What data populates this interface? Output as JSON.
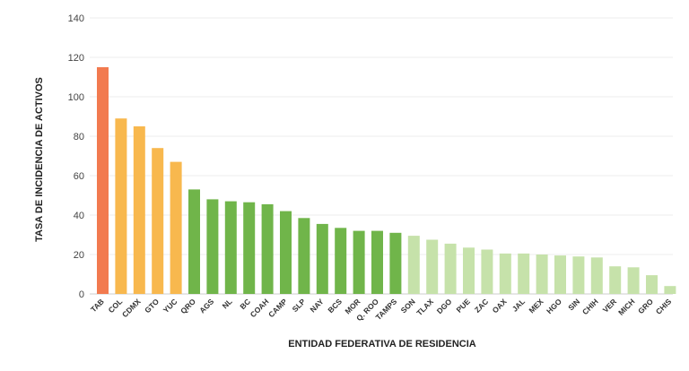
{
  "chart_data": {
    "type": "bar",
    "title": "",
    "xlabel": "ENTIDAD FEDERATIVA DE RESIDENCIA",
    "ylabel": "TASA DE INCIDENCIA DE ACTIVOS",
    "ylim": [
      0,
      140
    ],
    "yticks": [
      0,
      20,
      40,
      60,
      80,
      100,
      120,
      140
    ],
    "grid": true,
    "categories": [
      "TAB",
      "COL",
      "CDMX",
      "GTO",
      "YUC",
      "QRO",
      "AGS",
      "NL",
      "BC",
      "COAH",
      "CAMP",
      "SLP",
      "NAY",
      "BCS",
      "MOR",
      "Q. ROO",
      "TAMPS",
      "SON",
      "TLAX",
      "DGO",
      "PUE",
      "ZAC",
      "OAX",
      "JAL",
      "MEX",
      "HGO",
      "SIN",
      "CHIH",
      "VER",
      "MICH",
      "GRO",
      "CHIS"
    ],
    "values": [
      115,
      89,
      85,
      74,
      67,
      53,
      48,
      47,
      46.5,
      45.5,
      42,
      38.5,
      35.5,
      33.5,
      32,
      32,
      31,
      29.5,
      27.5,
      25.5,
      23.5,
      22.5,
      20.5,
      20.5,
      20,
      19.5,
      19,
      18.5,
      14,
      13.5,
      9.5,
      4
    ],
    "colors": [
      "#f27a4f",
      "#f8b84e",
      "#f8b84e",
      "#f8b84e",
      "#f8b84e",
      "#70b54a",
      "#70b54a",
      "#70b54a",
      "#70b54a",
      "#70b54a",
      "#70b54a",
      "#70b54a",
      "#70b54a",
      "#70b54a",
      "#70b54a",
      "#70b54a",
      "#70b54a",
      "#c6e2aa",
      "#c6e2aa",
      "#c6e2aa",
      "#c6e2aa",
      "#c6e2aa",
      "#c6e2aa",
      "#c6e2aa",
      "#c6e2aa",
      "#c6e2aa",
      "#c6e2aa",
      "#c6e2aa",
      "#c6e2aa",
      "#c6e2aa",
      "#c6e2aa",
      "#c6e2aa"
    ]
  }
}
